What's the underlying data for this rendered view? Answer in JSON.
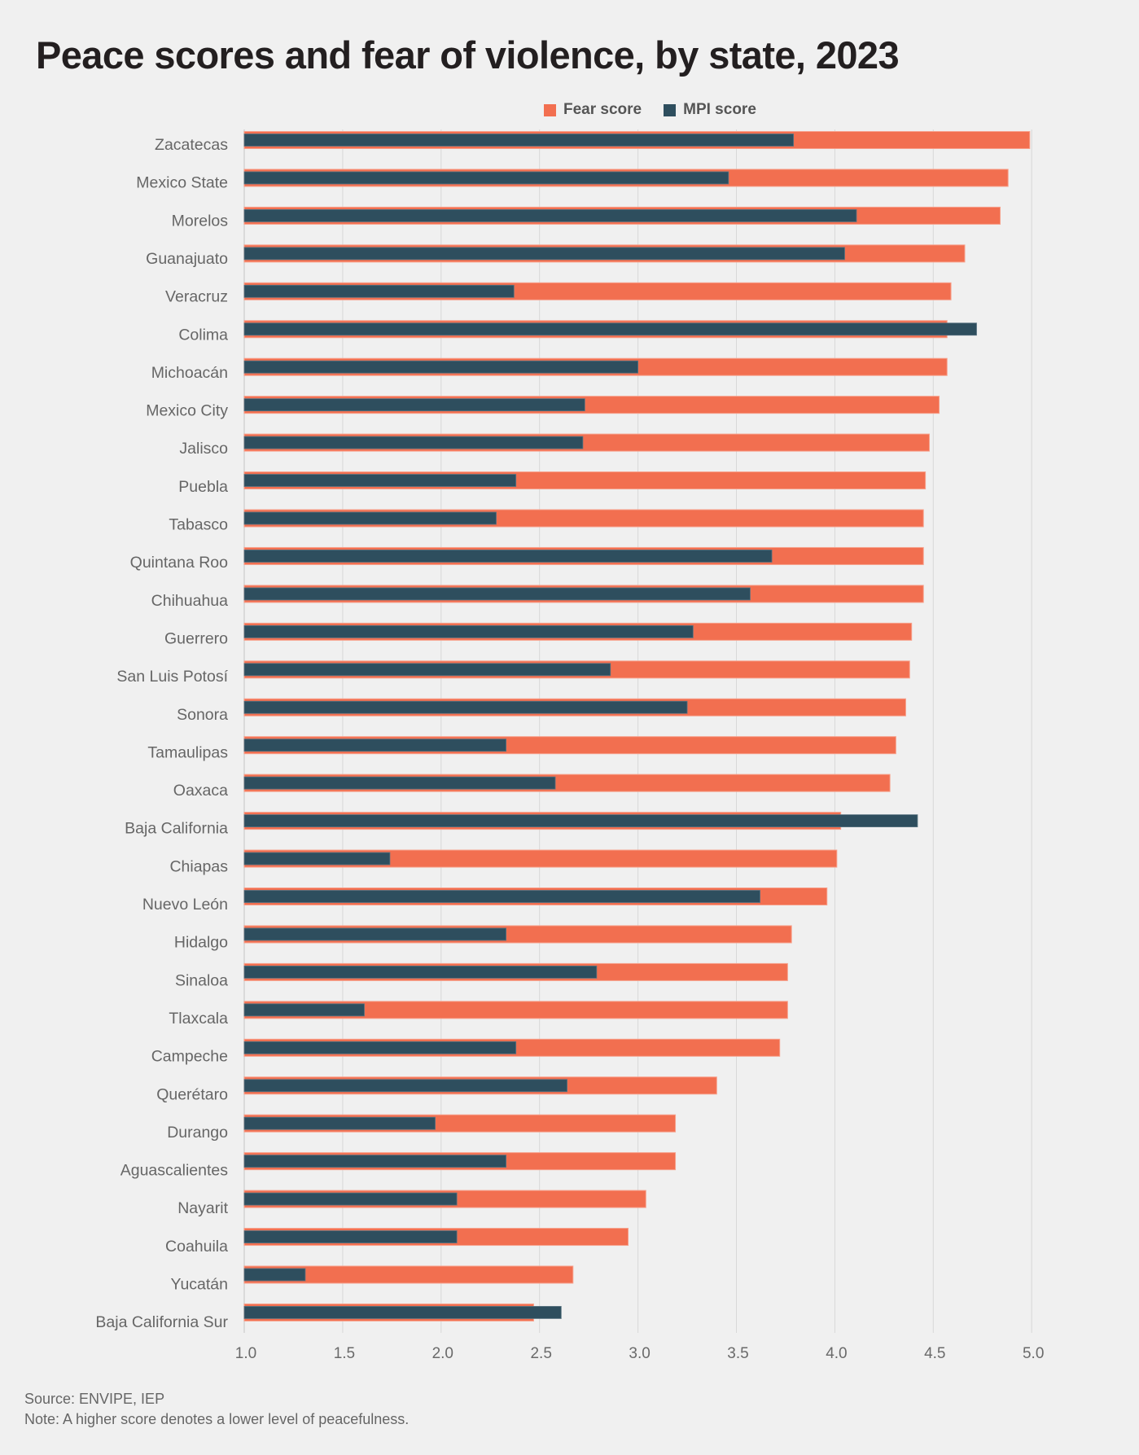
{
  "title": "Peace scores and fear of violence, by state, 2023",
  "legend": [
    {
      "label": "Fear score",
      "color": "#f26f50"
    },
    {
      "label": "MPI score",
      "color": "#2e4e5e"
    }
  ],
  "footer": {
    "source": "Source: ENVIPE, IEP",
    "note": "Note: A higher score denotes a lower level of peacefulness."
  },
  "chart_data": {
    "type": "bar",
    "orientation": "horizontal",
    "title": "Peace scores and fear of violence, by state, 2023",
    "xlabel": "",
    "ylabel": "",
    "xlim": [
      1.0,
      5.0
    ],
    "x_ticks": [
      "1.0",
      "1.5",
      "2.0",
      "2.5",
      "3.0",
      "3.5",
      "4.0",
      "4.5",
      "5.0"
    ],
    "x_tick_values": [
      1.0,
      1.5,
      2.0,
      2.5,
      3.0,
      3.5,
      4.0,
      4.5,
      5.0
    ],
    "grid": "vertical",
    "legend_position": "top-center",
    "categories": [
      "Zacatecas",
      "Mexico State",
      "Morelos",
      "Guanajuato",
      "Veracruz",
      "Colima",
      "Michoacán",
      "Mexico City",
      "Jalisco",
      "Puebla",
      "Tabasco",
      "Quintana Roo",
      "Chihuahua",
      "Guerrero",
      "San Luis Potosí",
      "Sonora",
      "Tamaulipas",
      "Oaxaca",
      "Baja California",
      "Chiapas",
      "Nuevo León",
      "Hidalgo",
      "Sinaloa",
      "Tlaxcala",
      "Campeche",
      "Querétaro",
      "Durango",
      "Aguascalientes",
      "Nayarit",
      "Coahuila",
      "Yucatán",
      "Baja California Sur"
    ],
    "series": [
      {
        "name": "Fear score",
        "color": "#f26f50",
        "values": [
          4.99,
          4.88,
          4.84,
          4.66,
          4.59,
          4.57,
          4.57,
          4.53,
          4.48,
          4.46,
          4.45,
          4.45,
          4.45,
          4.39,
          4.38,
          4.36,
          4.31,
          4.28,
          4.03,
          4.01,
          3.96,
          3.78,
          3.76,
          3.76,
          3.72,
          3.4,
          3.19,
          3.19,
          3.04,
          2.95,
          2.67,
          2.47
        ]
      },
      {
        "name": "MPI score",
        "color": "#2e4e5e",
        "values": [
          3.79,
          3.46,
          4.11,
          4.05,
          2.37,
          4.72,
          3.0,
          2.73,
          2.72,
          2.38,
          2.28,
          3.68,
          3.57,
          3.28,
          2.86,
          3.25,
          2.33,
          2.58,
          4.42,
          1.74,
          3.62,
          2.33,
          2.79,
          1.61,
          2.38,
          2.64,
          1.97,
          2.33,
          2.08,
          2.08,
          1.31,
          2.61
        ]
      }
    ]
  }
}
